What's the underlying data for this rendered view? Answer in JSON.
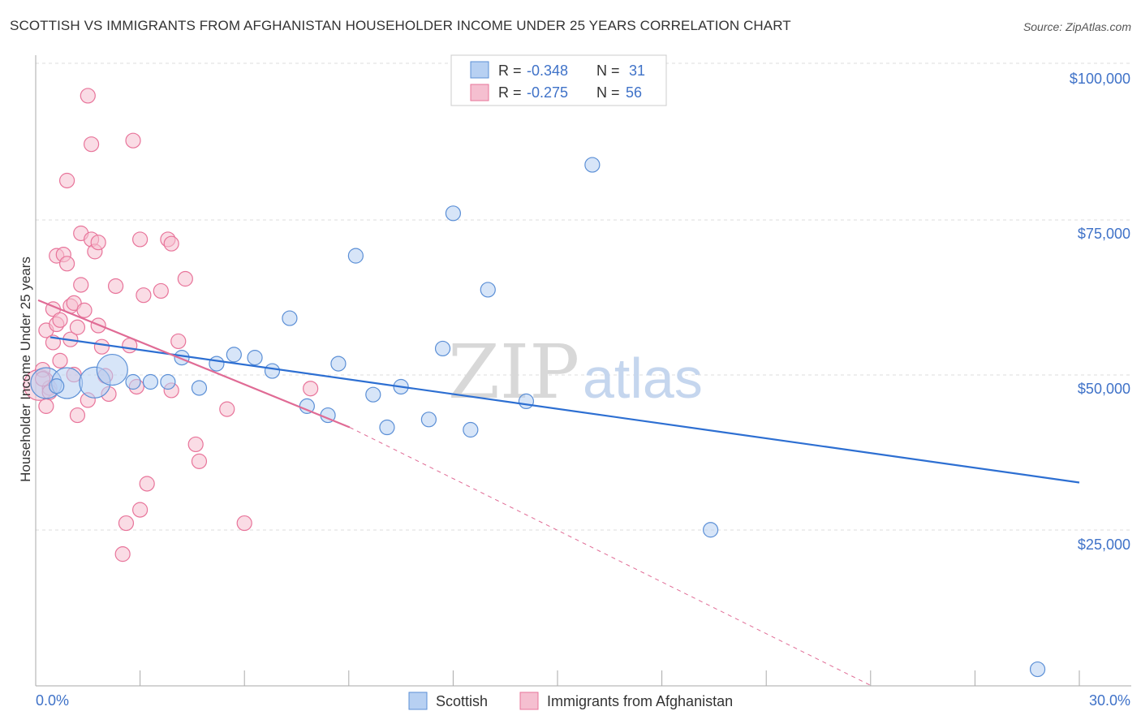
{
  "title": "SCOTTISH VS IMMIGRANTS FROM AFGHANISTAN HOUSEHOLDER INCOME UNDER 25 YEARS CORRELATION CHART",
  "source": "Source: ZipAtlas.com",
  "watermark": {
    "zip": "ZIP",
    "atlas": "atlas"
  },
  "colors": {
    "scottish": "#5b8fd6",
    "scottish_fill": "#b7d0f2",
    "afghan": "#e8749a",
    "afghan_fill": "#f5bfd0",
    "axis_label": "#3f72c8",
    "grid": "#dddddd"
  },
  "chart_data": {
    "type": "scatter",
    "title": "SCOTTISH VS IMMIGRANTS FROM AFGHANISTAN HOUSEHOLDER INCOME UNDER 25 YEARS CORRELATION CHART",
    "xlabel": "",
    "ylabel": "Householder Income Under 25 years",
    "xlim": [
      0,
      30
    ],
    "ylim": [
      0,
      100000
    ],
    "x_tick_labels": [
      "0.0%",
      "30.0%"
    ],
    "y_ticks": [
      {
        "value": 100000,
        "label": "$100,000"
      },
      {
        "value": 75000,
        "label": "$75,000"
      },
      {
        "value": 50000,
        "label": "$50,000"
      },
      {
        "value": 25000,
        "label": "$25,000"
      }
    ],
    "legend": {
      "stats": [
        {
          "r_label": "R =",
          "r": "-0.348",
          "n_label": "N =",
          "n": "31"
        },
        {
          "r_label": "R =",
          "r": "-0.275",
          "n_label": "N =",
          "n": "56"
        }
      ]
    },
    "series": [
      {
        "name": "Scottish",
        "trend": {
          "x": [
            0,
            30
          ],
          "y": [
            57500,
            33400
          ],
          "style": "solid"
        },
        "points": [
          {
            "x": 0.3,
            "y": 49800,
            "size": "l"
          },
          {
            "x": 0.9,
            "y": 49800,
            "size": "l"
          },
          {
            "x": 1.7,
            "y": 49900,
            "size": "l"
          },
          {
            "x": 2.2,
            "y": 52000,
            "size": "l"
          },
          {
            "x": 2.8,
            "y": 50000
          },
          {
            "x": 3.3,
            "y": 50000
          },
          {
            "x": 3.8,
            "y": 50000
          },
          {
            "x": 4.2,
            "y": 54000
          },
          {
            "x": 4.7,
            "y": 49000
          },
          {
            "x": 5.2,
            "y": 53000
          },
          {
            "x": 5.7,
            "y": 54500
          },
          {
            "x": 6.3,
            "y": 54000
          },
          {
            "x": 6.8,
            "y": 51800
          },
          {
            "x": 7.3,
            "y": 60500
          },
          {
            "x": 7.8,
            "y": 46000
          },
          {
            "x": 8.4,
            "y": 44500
          },
          {
            "x": 8.7,
            "y": 53000
          },
          {
            "x": 9.2,
            "y": 70800
          },
          {
            "x": 9.7,
            "y": 47900
          },
          {
            "x": 10.1,
            "y": 42500
          },
          {
            "x": 10.5,
            "y": 49200
          },
          {
            "x": 11.3,
            "y": 43800
          },
          {
            "x": 11.7,
            "y": 55500
          },
          {
            "x": 12.0,
            "y": 77800
          },
          {
            "x": 12.5,
            "y": 42100
          },
          {
            "x": 13.0,
            "y": 65200
          },
          {
            "x": 14.1,
            "y": 46800
          },
          {
            "x": 16.0,
            "y": 85800
          },
          {
            "x": 19.4,
            "y": 25600
          },
          {
            "x": 28.8,
            "y": 2600
          },
          {
            "x": 0.6,
            "y": 49300
          }
        ]
      },
      {
        "name": "Immigrants from Afghanistan",
        "trend": {
          "x": [
            0,
            8.0
          ],
          "y": [
            63200,
            42500
          ],
          "style": "solid",
          "dashed_to": {
            "x": 30,
            "y": -17000
          }
        },
        "points": [
          {
            "x": 0.1,
            "y": 49500,
            "size": "l"
          },
          {
            "x": 0.2,
            "y": 52000
          },
          {
            "x": 0.3,
            "y": 58500
          },
          {
            "x": 0.3,
            "y": 46000
          },
          {
            "x": 0.4,
            "y": 49000
          },
          {
            "x": 0.5,
            "y": 62000
          },
          {
            "x": 0.5,
            "y": 56500
          },
          {
            "x": 0.6,
            "y": 59500
          },
          {
            "x": 0.6,
            "y": 70800
          },
          {
            "x": 0.7,
            "y": 60200
          },
          {
            "x": 0.7,
            "y": 53500
          },
          {
            "x": 0.8,
            "y": 71000
          },
          {
            "x": 0.9,
            "y": 69500
          },
          {
            "x": 0.9,
            "y": 83200
          },
          {
            "x": 1.0,
            "y": 62500
          },
          {
            "x": 1.0,
            "y": 57000
          },
          {
            "x": 1.1,
            "y": 63000
          },
          {
            "x": 1.2,
            "y": 59000
          },
          {
            "x": 1.2,
            "y": 44500
          },
          {
            "x": 1.3,
            "y": 66000
          },
          {
            "x": 1.3,
            "y": 74500
          },
          {
            "x": 1.4,
            "y": 61800
          },
          {
            "x": 1.5,
            "y": 97200
          },
          {
            "x": 1.5,
            "y": 47000
          },
          {
            "x": 1.6,
            "y": 73500
          },
          {
            "x": 1.6,
            "y": 89200
          },
          {
            "x": 1.7,
            "y": 71500
          },
          {
            "x": 1.8,
            "y": 73000
          },
          {
            "x": 1.8,
            "y": 59300
          },
          {
            "x": 1.9,
            "y": 55800
          },
          {
            "x": 2.0,
            "y": 51000
          },
          {
            "x": 2.1,
            "y": 48000
          },
          {
            "x": 2.3,
            "y": 65800
          },
          {
            "x": 2.5,
            "y": 21600
          },
          {
            "x": 2.6,
            "y": 26700
          },
          {
            "x": 2.7,
            "y": 56000
          },
          {
            "x": 2.8,
            "y": 89800
          },
          {
            "x": 2.9,
            "y": 49200
          },
          {
            "x": 3.0,
            "y": 73500
          },
          {
            "x": 3.0,
            "y": 28900
          },
          {
            "x": 3.1,
            "y": 64300
          },
          {
            "x": 3.2,
            "y": 33200
          },
          {
            "x": 3.6,
            "y": 65000
          },
          {
            "x": 3.8,
            "y": 73500
          },
          {
            "x": 3.9,
            "y": 72800
          },
          {
            "x": 3.9,
            "y": 48600
          },
          {
            "x": 4.1,
            "y": 56700
          },
          {
            "x": 4.3,
            "y": 67000
          },
          {
            "x": 4.6,
            "y": 39700
          },
          {
            "x": 4.7,
            "y": 36900
          },
          {
            "x": 5.5,
            "y": 45500
          },
          {
            "x": 6.0,
            "y": 26700
          },
          {
            "x": 7.9,
            "y": 48900
          },
          {
            "x": 0.2,
            "y": 50500
          },
          {
            "x": 1.1,
            "y": 51200
          },
          {
            "x": 0.4,
            "y": 48300
          }
        ]
      }
    ]
  }
}
